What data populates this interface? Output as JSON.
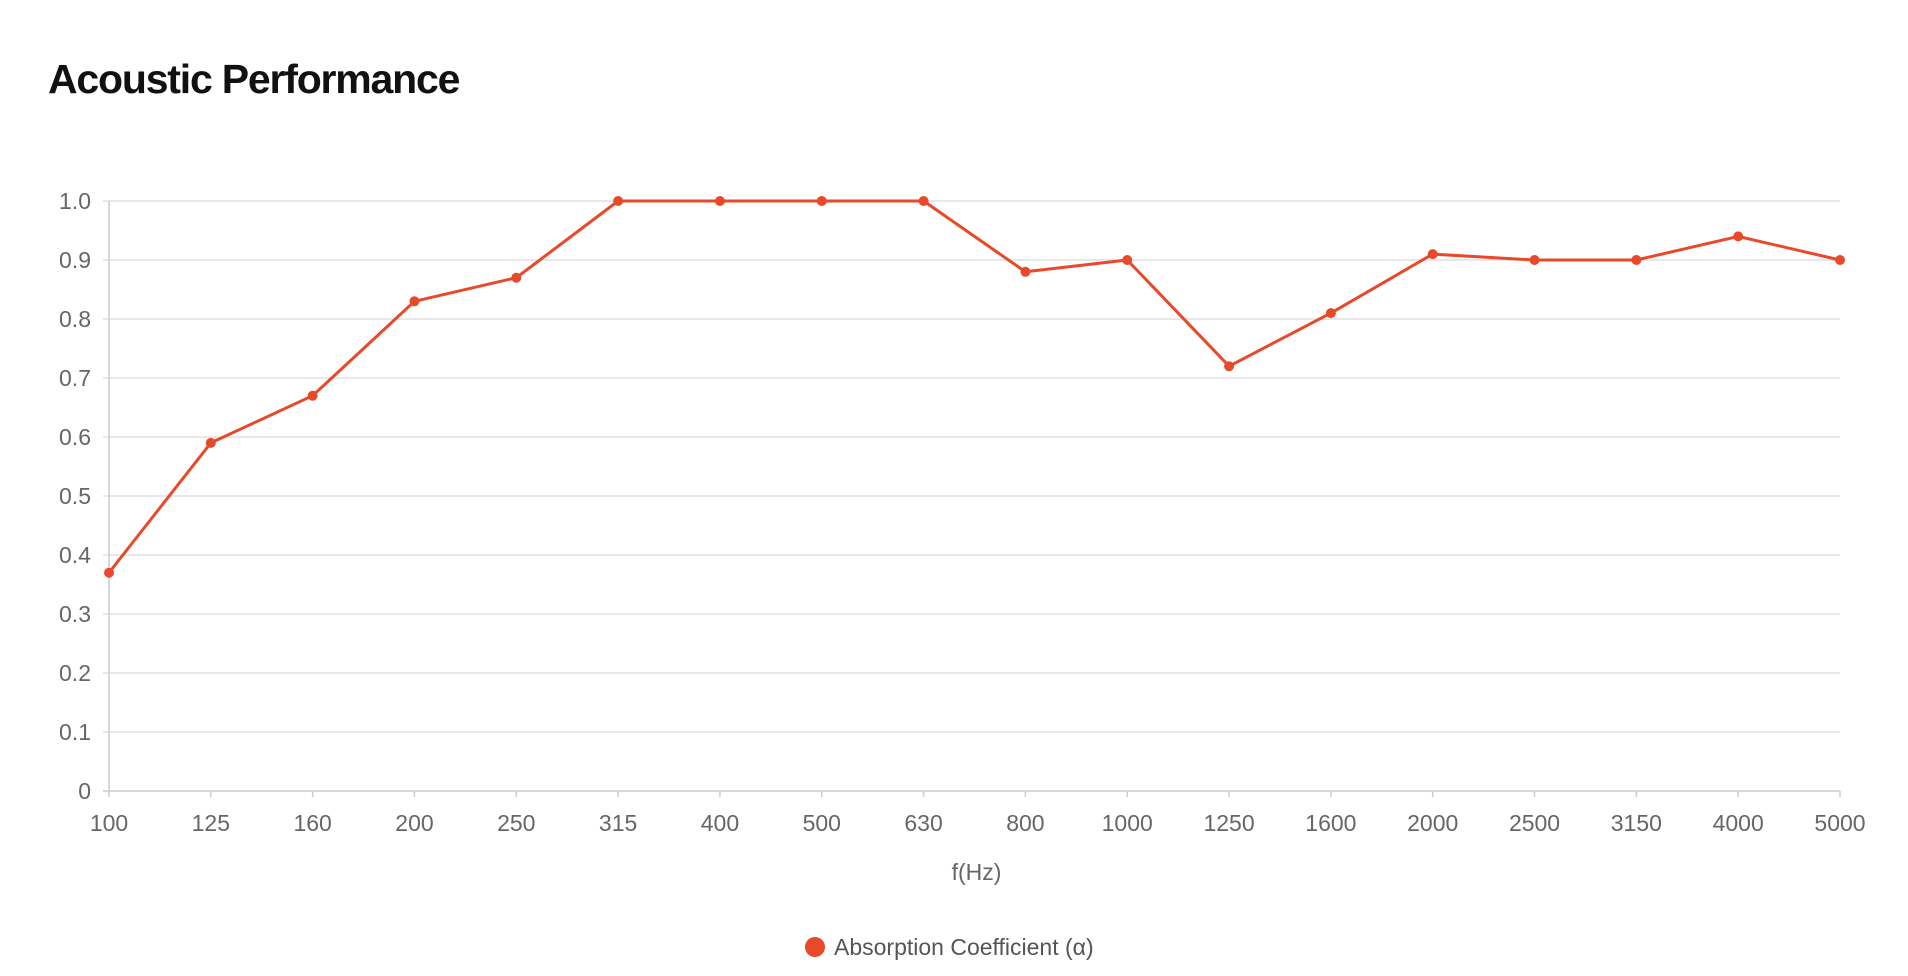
{
  "page": {
    "title": "Acoustic Performance"
  },
  "chart_data": {
    "type": "line",
    "title": "",
    "xlabel": "f(Hz)",
    "ylabel": "",
    "categories": [
      "100",
      "125",
      "160",
      "200",
      "250",
      "315",
      "400",
      "500",
      "630",
      "800",
      "1000",
      "1250",
      "1600",
      "2000",
      "2500",
      "3150",
      "4000",
      "5000"
    ],
    "series": [
      {
        "name": "Absorption Coefficient (α)",
        "color": "#e8492a",
        "values": [
          0.37,
          0.59,
          0.67,
          0.83,
          0.87,
          1.0,
          1.0,
          1.0,
          1.0,
          0.88,
          0.9,
          0.72,
          0.81,
          0.91,
          0.9,
          0.9,
          0.94,
          0.9
        ]
      }
    ],
    "yticks": [
      "0",
      "0.1",
      "0.2",
      "0.3",
      "0.4",
      "0.5",
      "0.6",
      "0.7",
      "0.8",
      "0.9",
      "1.0"
    ],
    "ylim": [
      0,
      1.0
    ],
    "grid": true,
    "legend_position": "bottom-center",
    "colors": {
      "grid": "#e0e0e0",
      "axis": "#cccccc",
      "text": "#666666"
    }
  }
}
